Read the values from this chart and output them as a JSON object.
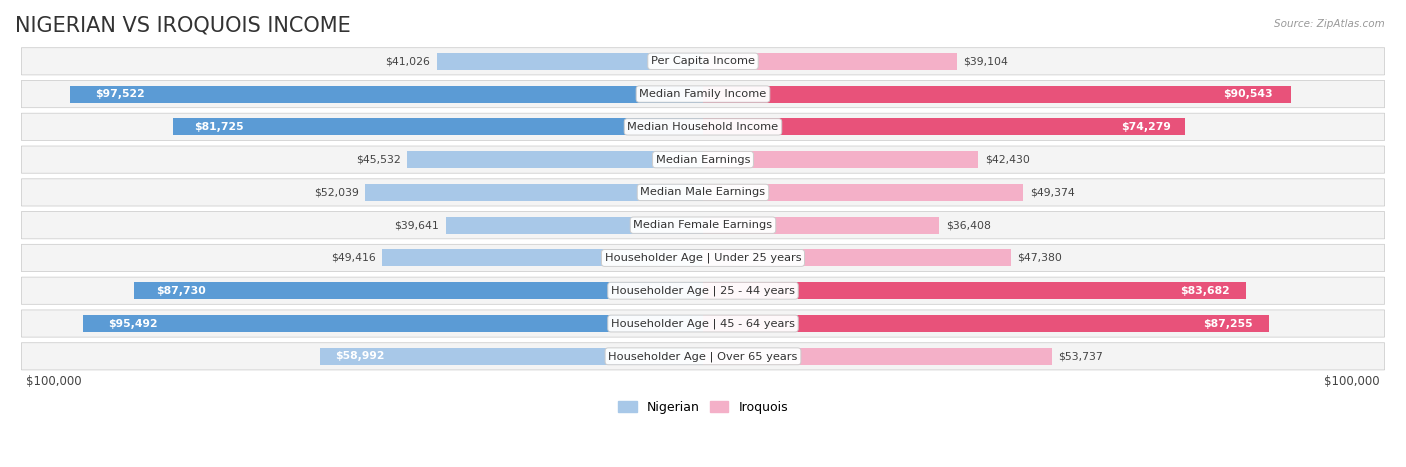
{
  "title": "NIGERIAN VS IROQUOIS INCOME",
  "source": "Source: ZipAtlas.com",
  "categories": [
    "Per Capita Income",
    "Median Family Income",
    "Median Household Income",
    "Median Earnings",
    "Median Male Earnings",
    "Median Female Earnings",
    "Householder Age | Under 25 years",
    "Householder Age | 25 - 44 years",
    "Householder Age | 45 - 64 years",
    "Householder Age | Over 65 years"
  ],
  "nigerian": [
    41026,
    97522,
    81725,
    45532,
    52039,
    39641,
    49416,
    87730,
    95492,
    58992
  ],
  "iroquois": [
    39104,
    90543,
    74279,
    42430,
    49374,
    36408,
    47380,
    83682,
    87255,
    53737
  ],
  "max_val": 100000,
  "nigerian_color_light": "#a8c8e8",
  "nigerian_color_dark": "#5b9bd5",
  "iroquois_color_light": "#f4b0c8",
  "iroquois_color_dark": "#e8527a",
  "dark_threshold": 65000,
  "bar_height": 0.52,
  "row_bg_color": "#f4f4f4",
  "row_bg_alt_color": "#ebebeb",
  "legend_nigerian_label": "Nigerian",
  "legend_iroquois_label": "Iroquois",
  "title_fontsize": 15,
  "label_fontsize": 8.2,
  "value_fontsize": 7.8,
  "axis_label_fontsize": 8.5,
  "legend_fontsize": 9,
  "inside_label_threshold": 55000
}
